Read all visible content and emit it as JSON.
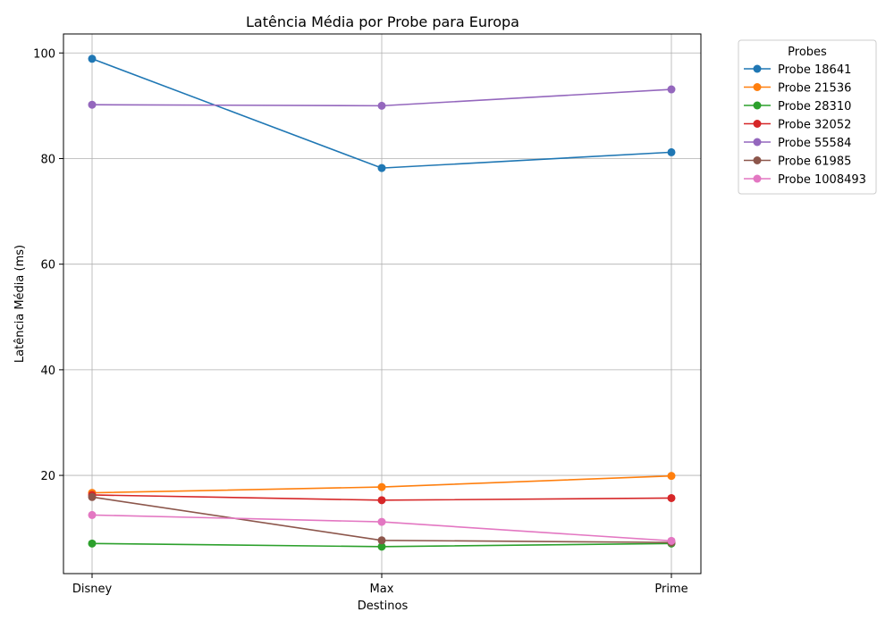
{
  "chart_data": {
    "type": "line",
    "title": "Latência Média por Probe para Europa",
    "xlabel": "Destinos",
    "ylabel": "Latência Média (ms)",
    "categories": [
      "Disney",
      "Max",
      "Prime"
    ],
    "ylim": [
      1.4,
      103.6
    ],
    "yticks": [
      20,
      40,
      60,
      80,
      100
    ],
    "grid": true,
    "legend_title": "Probes",
    "legend_position": "outside-right-top",
    "series": [
      {
        "name": "Probe 18641",
        "color": "#1f77b4",
        "values": [
          98.9,
          78.2,
          81.2
        ]
      },
      {
        "name": "Probe 21536",
        "color": "#ff7f0e",
        "values": [
          16.7,
          17.8,
          19.9
        ]
      },
      {
        "name": "Probe 28310",
        "color": "#2ca02c",
        "values": [
          7.1,
          6.5,
          7.1
        ]
      },
      {
        "name": "Probe 32052",
        "color": "#d62728",
        "values": [
          16.3,
          15.3,
          15.7
        ]
      },
      {
        "name": "Probe 55584",
        "color": "#9467bd",
        "values": [
          90.2,
          90.0,
          93.1
        ]
      },
      {
        "name": "Probe 61985",
        "color": "#8c564b",
        "values": [
          15.9,
          7.7,
          7.3
        ]
      },
      {
        "name": "Probe 1008493",
        "color": "#e377c2",
        "values": [
          12.5,
          11.2,
          7.6
        ]
      }
    ]
  }
}
